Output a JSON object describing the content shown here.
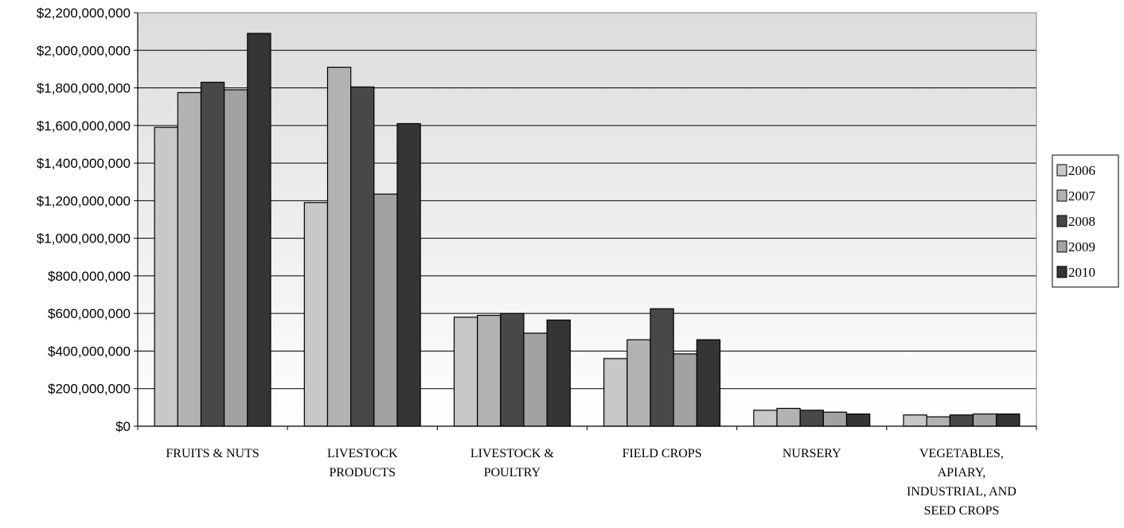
{
  "chart_data": {
    "type": "bar",
    "title": "",
    "xlabel": "",
    "ylabel": "",
    "ylim": [
      0,
      2200000000
    ],
    "ytick_step": 200000000,
    "y_tick_labels": [
      "$0",
      "$200,000,000",
      "$400,000,000",
      "$600,000,000",
      "$800,000,000",
      "$1,000,000,000",
      "$1,200,000,000",
      "$1,400,000,000",
      "$1,600,000,000",
      "$1,800,000,000",
      "$2,000,000,000",
      "$2,200,000,000"
    ],
    "categories": [
      [
        "FRUITS & NUTS"
      ],
      [
        "LIVESTOCK",
        "PRODUCTS"
      ],
      [
        "LIVESTOCK &",
        "POULTRY"
      ],
      [
        "FIELD CROPS"
      ],
      [
        "NURSERY"
      ],
      [
        "VEGETABLES,",
        "APIARY,",
        "INDUSTRIAL, AND",
        "SEED CROPS"
      ]
    ],
    "grid": true,
    "legend_position": "right",
    "series": [
      {
        "name": "2006",
        "color": "#c8c8c8",
        "values": [
          1590000000,
          1190000000,
          580000000,
          360000000,
          85000000,
          60000000
        ]
      },
      {
        "name": "2007",
        "color": "#b2b2b2",
        "values": [
          1775000000,
          1910000000,
          590000000,
          460000000,
          95000000,
          50000000
        ]
      },
      {
        "name": "2008",
        "color": "#484848",
        "values": [
          1830000000,
          1805000000,
          600000000,
          625000000,
          85000000,
          60000000
        ]
      },
      {
        "name": "2009",
        "color": "#a2a2a2",
        "values": [
          1790000000,
          1235000000,
          495000000,
          385000000,
          75000000,
          65000000
        ]
      },
      {
        "name": "2010",
        "color": "#353535",
        "values": [
          2090000000,
          1610000000,
          565000000,
          460000000,
          65000000,
          65000000
        ]
      }
    ]
  }
}
